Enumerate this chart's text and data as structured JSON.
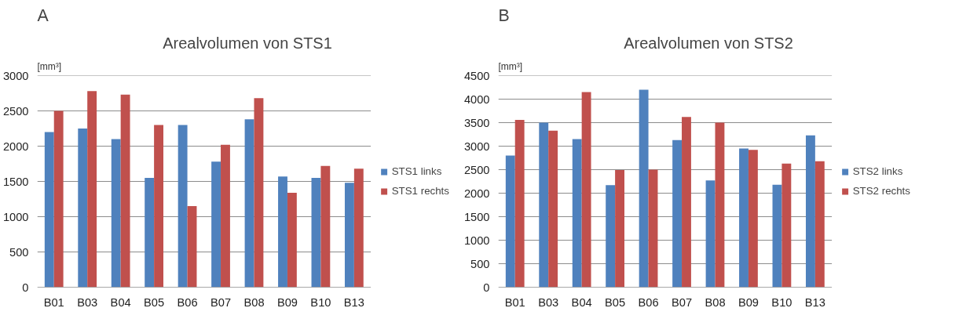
{
  "chart_data": [
    {
      "type": "bar",
      "annotations": [
        "A"
      ],
      "title": "Arealvolumen von STS1",
      "ylabel": "[mm³]",
      "categories": [
        "B01",
        "B03",
        "B04",
        "B05",
        "B06",
        "B07",
        "B08",
        "B09",
        "B10",
        "B13"
      ],
      "series": [
        {
          "name": "STS1 links",
          "color": "#4f81bd",
          "values": [
            2200,
            2250,
            2100,
            1550,
            2300,
            1780,
            2380,
            1570,
            1550,
            1480
          ]
        },
        {
          "name": "STS1 rechts",
          "color": "#c0504d",
          "values": [
            2500,
            2780,
            2730,
            2300,
            1150,
            2020,
            2680,
            1340,
            1720,
            1680
          ]
        }
      ],
      "ylim": [
        0,
        3000
      ],
      "yticks": [
        0,
        500,
        1000,
        1500,
        2000,
        2500,
        3000
      ],
      "grid": "y",
      "legend": "right"
    },
    {
      "type": "bar",
      "annotations": [
        "B"
      ],
      "title": "Arealvolumen von STS2",
      "ylabel": "[mm³]",
      "categories": [
        "B01",
        "B03",
        "B04",
        "B05",
        "B06",
        "B07",
        "B08",
        "B09",
        "B10",
        "B13"
      ],
      "series": [
        {
          "name": "STS2 links",
          "color": "#4f81bd",
          "values": [
            2800,
            3500,
            3150,
            2170,
            4200,
            3130,
            2270,
            2950,
            2180,
            3230
          ]
        },
        {
          "name": "STS2 rechts",
          "color": "#c0504d",
          "values": [
            3560,
            3330,
            4150,
            2490,
            2500,
            3620,
            3500,
            2920,
            2630,
            2680
          ]
        }
      ],
      "ylim": [
        0,
        4500
      ],
      "yticks": [
        0,
        500,
        1000,
        1500,
        2000,
        2500,
        3000,
        3500,
        4000,
        4500
      ],
      "grid": "y",
      "legend": "right"
    }
  ]
}
